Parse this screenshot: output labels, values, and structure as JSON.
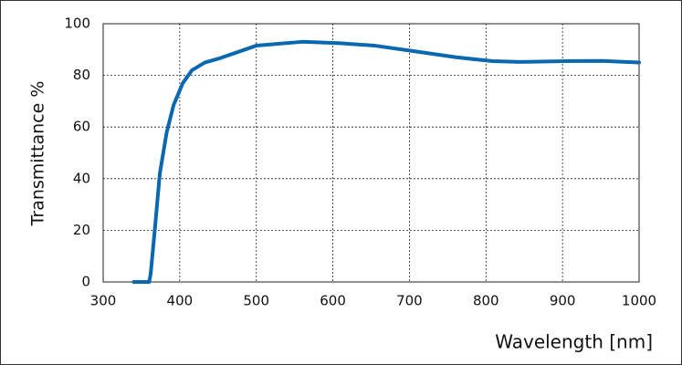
{
  "chart_data": {
    "type": "line",
    "x_label": "Wavelength [nm]",
    "y_label": "Transmittance %",
    "x": [
      340,
      360,
      362,
      368,
      374,
      383,
      392,
      404,
      416,
      433,
      451,
      500,
      560,
      607,
      655,
      703,
      761,
      809,
      845,
      905,
      952,
      1000
    ],
    "series": [
      {
        "name": "Transmittance",
        "color": "#0a68b0",
        "values": [
          0,
          0,
          3,
          22,
          42,
          58,
          68.5,
          77,
          82,
          85,
          86.5,
          91.5,
          93,
          92.5,
          91.5,
          89.5,
          87,
          85.5,
          85.2,
          85.5,
          85.6,
          85
        ]
      }
    ],
    "xlim": [
      300,
      1000
    ],
    "xticks": [
      300,
      400,
      500,
      600,
      700,
      800,
      900,
      1000
    ],
    "ylim": [
      0,
      100
    ],
    "yticks": [
      0,
      20,
      40,
      60,
      80,
      100
    ],
    "grid": true
  }
}
